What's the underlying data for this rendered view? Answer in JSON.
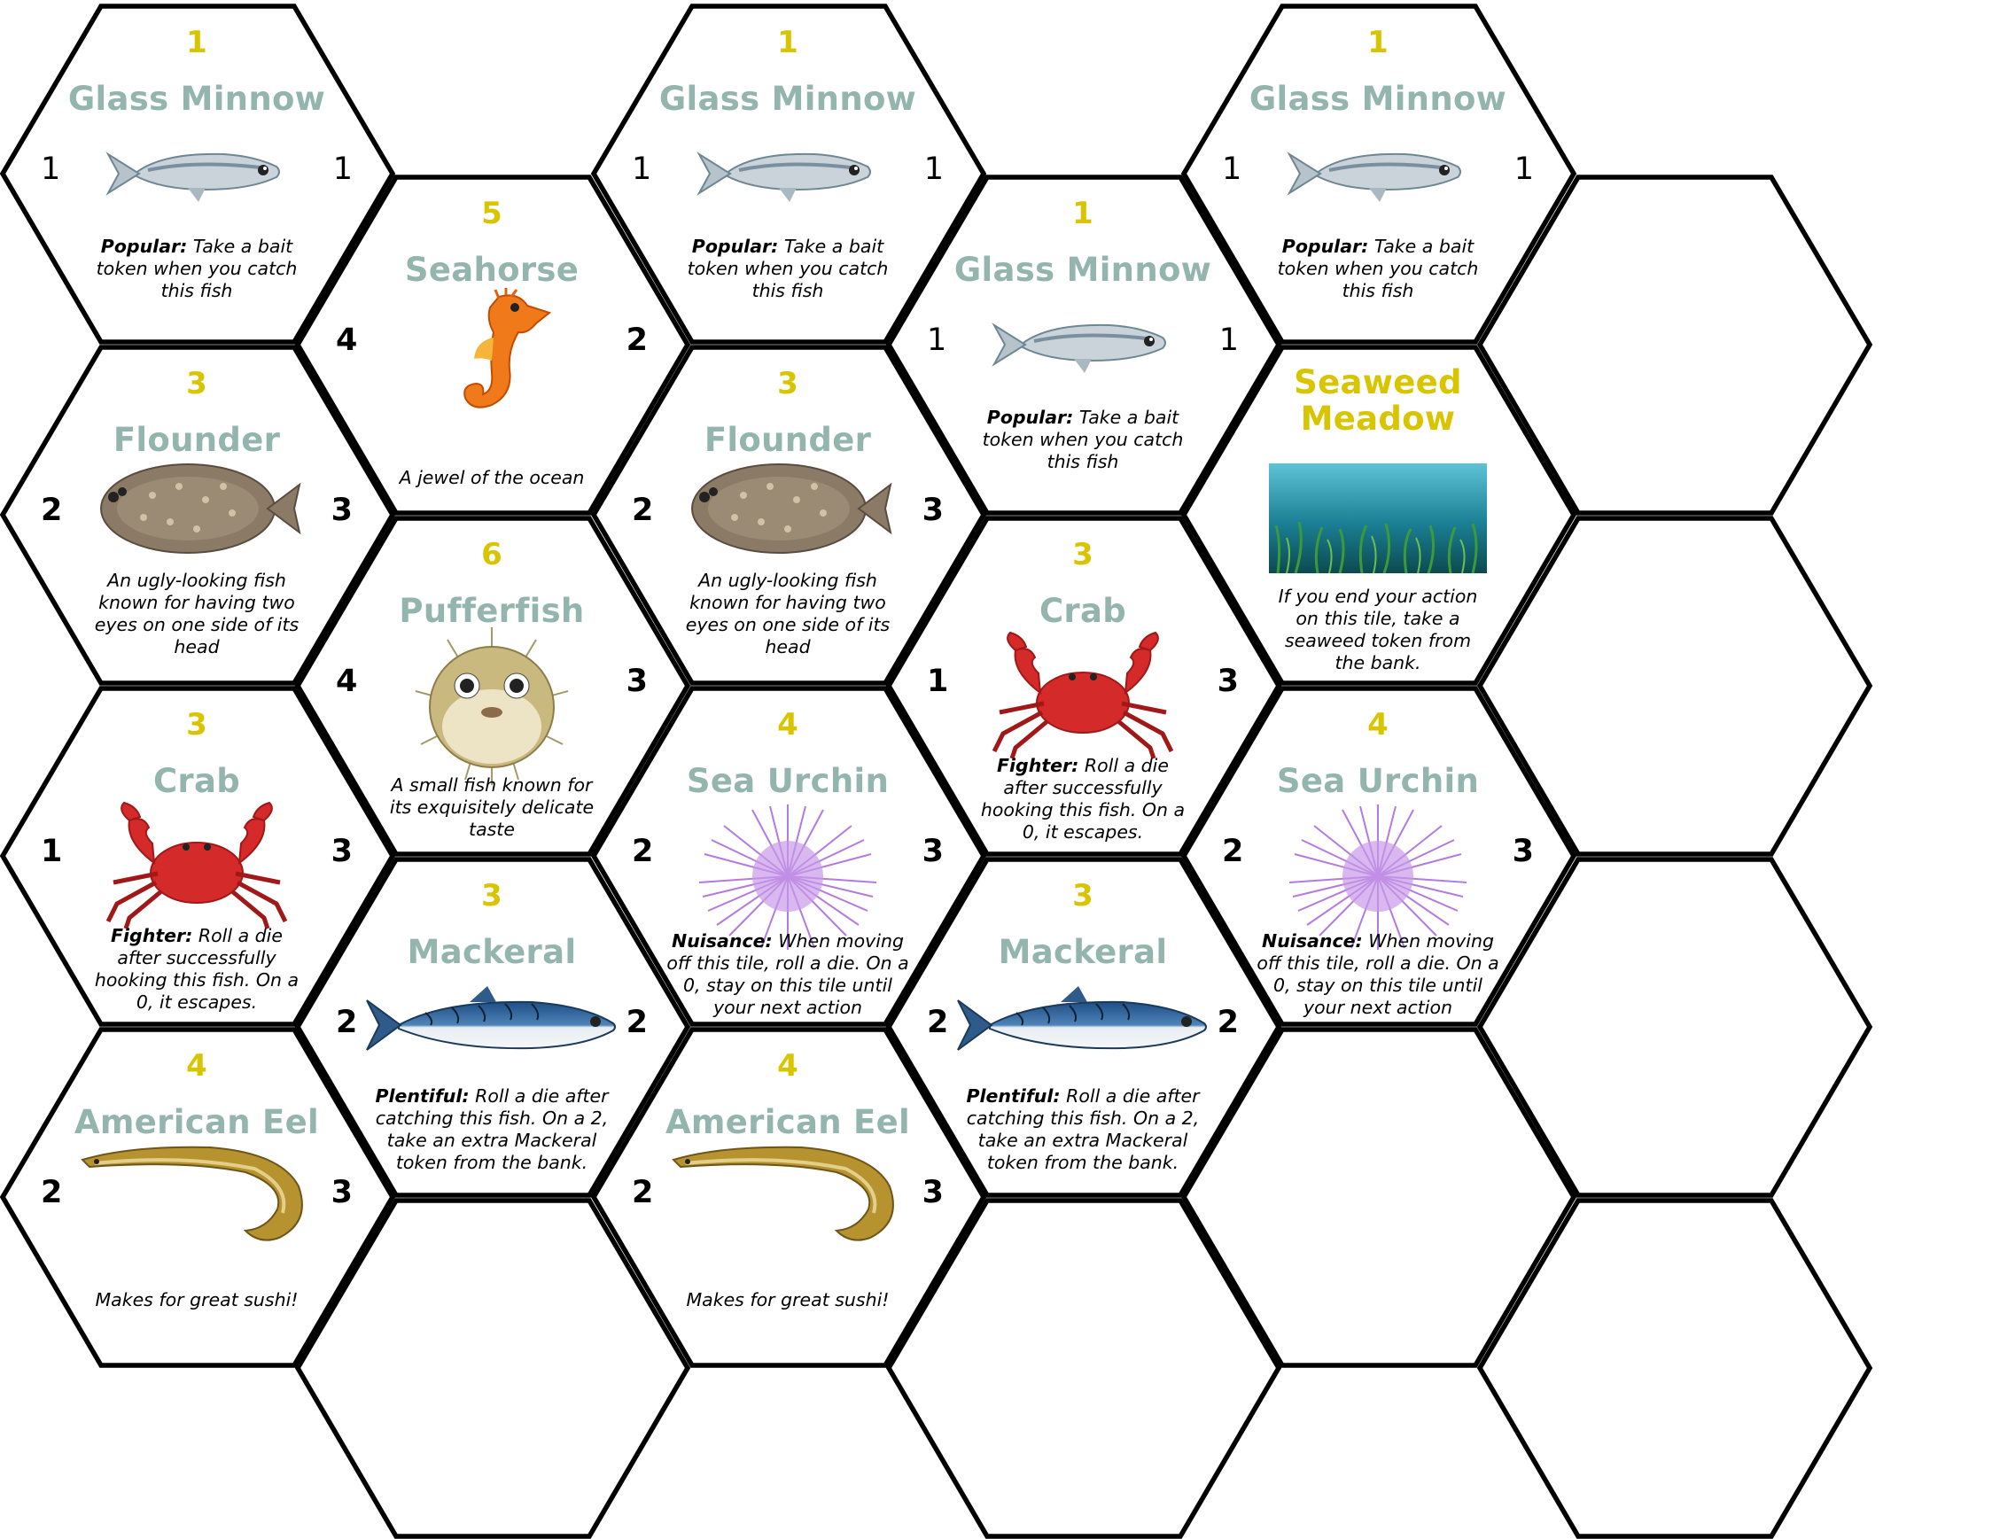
{
  "colors": {
    "accent_yellow": "#d9c400",
    "name_teal": "#93b5ad",
    "outline": "#000000",
    "hex_fill": "#ffffff"
  },
  "tiles": [
    {
      "id": "t0",
      "points": "1",
      "name": "Glass Minnow",
      "left": "1",
      "right": "1",
      "bold_sides": false,
      "icon": "glass-minnow-icon",
      "desc_bold": "Popular:",
      "desc": "Take a bait token when you catch this fish"
    },
    {
      "id": "t1",
      "points": "1",
      "name": "Glass Minnow",
      "left": "1",
      "right": "1",
      "bold_sides": false,
      "icon": "glass-minnow-icon",
      "desc_bold": "Popular:",
      "desc": "Take a bait token when you catch this fish"
    },
    {
      "id": "t2",
      "points": "1",
      "name": "Glass Minnow",
      "left": "1",
      "right": "1",
      "bold_sides": false,
      "icon": "glass-minnow-icon",
      "desc_bold": "Popular:",
      "desc": "Take a bait token when you catch this fish"
    },
    {
      "id": "t3",
      "points": "5",
      "name": "Seahorse",
      "left": "4",
      "right": "2",
      "bold_sides": true,
      "icon": "seahorse-icon",
      "desc_bold": "",
      "desc": "A jewel of the ocean"
    },
    {
      "id": "t4",
      "points": "1",
      "name": "Glass Minnow",
      "left": "1",
      "right": "1",
      "bold_sides": false,
      "icon": "glass-minnow-icon",
      "desc_bold": "Popular:",
      "desc": "Take a bait token when you catch this fish"
    },
    {
      "id": "t5",
      "points": "3",
      "name": "Flounder",
      "left": "2",
      "right": "3",
      "bold_sides": true,
      "icon": "flounder-icon",
      "desc_bold": "",
      "desc": "An ugly-looking fish known for having two eyes on one side of its head"
    },
    {
      "id": "t6",
      "points": "3",
      "name": "Flounder",
      "left": "2",
      "right": "3",
      "bold_sides": true,
      "icon": "flounder-icon",
      "desc_bold": "",
      "desc": "An ugly-looking fish known for having two eyes on one side of its head"
    },
    {
      "id": "t7",
      "points": "",
      "name": "Seaweed Meadow",
      "left": "",
      "right": "",
      "bold_sides": true,
      "icon": "seaweed-meadow-icon",
      "desc_bold": "",
      "desc": "If you end your action on this tile, take a seaweed token from the bank."
    },
    {
      "id": "t8",
      "points": "6",
      "name": "Pufferfish",
      "left": "4",
      "right": "3",
      "bold_sides": true,
      "icon": "pufferfish-icon",
      "desc_bold": "",
      "desc": "A small fish known for its exquisitely delicate taste"
    },
    {
      "id": "t9",
      "points": "3",
      "name": "Crab",
      "left": "1",
      "right": "3",
      "bold_sides": true,
      "icon": "crab-icon",
      "desc_bold": "Fighter:",
      "desc": "Roll a die after successfully hooking this fish. On a 0, it escapes."
    },
    {
      "id": "t10",
      "points": "3",
      "name": "Crab",
      "left": "1",
      "right": "3",
      "bold_sides": true,
      "icon": "crab-icon",
      "desc_bold": "Fighter:",
      "desc": "Roll a die after successfully hooking this fish. On a 0, it escapes."
    },
    {
      "id": "t11",
      "points": "4",
      "name": "Sea Urchin",
      "left": "2",
      "right": "3",
      "bold_sides": true,
      "icon": "sea-urchin-icon",
      "desc_bold": "Nuisance:",
      "desc": "When moving off this tile, roll a die. On a 0, stay on this tile until your next action"
    },
    {
      "id": "t12",
      "points": "4",
      "name": "Sea Urchin",
      "left": "2",
      "right": "3",
      "bold_sides": true,
      "icon": "sea-urchin-icon",
      "desc_bold": "Nuisance:",
      "desc": "When moving off this tile, roll a die. On a 0, stay on this tile until your next action"
    },
    {
      "id": "t13",
      "points": "3",
      "name": "Mackeral",
      "left": "2",
      "right": "2",
      "bold_sides": true,
      "icon": "mackerel-icon",
      "desc_bold": "Plentiful:",
      "desc": "Roll a die after catching this fish. On a 2, take an extra Mackeral token from the bank."
    },
    {
      "id": "t14",
      "points": "3",
      "name": "Mackeral",
      "left": "2",
      "right": "2",
      "bold_sides": true,
      "icon": "mackerel-icon",
      "desc_bold": "Plentiful:",
      "desc": "Roll a die after catching this fish. On a 2, take an extra Mackeral token from the bank."
    },
    {
      "id": "t15",
      "points": "4",
      "name": "American Eel",
      "left": "2",
      "right": "3",
      "bold_sides": true,
      "icon": "american-eel-icon",
      "desc_bold": "",
      "desc": "Makes for great sushi!"
    },
    {
      "id": "t16",
      "points": "4",
      "name": "American Eel",
      "left": "2",
      "right": "3",
      "bold_sides": true,
      "icon": "american-eel-icon",
      "desc_bold": "",
      "desc": "Makes for great sushi!"
    },
    {
      "id": "e0",
      "points": "",
      "name": "",
      "left": "",
      "right": "",
      "bold_sides": false,
      "icon": "",
      "desc_bold": "",
      "desc": ""
    },
    {
      "id": "e1",
      "points": "",
      "name": "",
      "left": "",
      "right": "",
      "bold_sides": false,
      "icon": "",
      "desc_bold": "",
      "desc": ""
    },
    {
      "id": "e2",
      "points": "",
      "name": "",
      "left": "",
      "right": "",
      "bold_sides": false,
      "icon": "",
      "desc_bold": "",
      "desc": ""
    },
    {
      "id": "e3",
      "points": "",
      "name": "",
      "left": "",
      "right": "",
      "bold_sides": false,
      "icon": "",
      "desc_bold": "",
      "desc": ""
    },
    {
      "id": "e4",
      "points": "",
      "name": "",
      "left": "",
      "right": "",
      "bold_sides": false,
      "icon": "",
      "desc_bold": "",
      "desc": ""
    },
    {
      "id": "e5",
      "points": "",
      "name": "",
      "left": "",
      "right": "",
      "bold_sides": false,
      "icon": "",
      "desc_bold": "",
      "desc": ""
    },
    {
      "id": "e6",
      "points": "",
      "name": "",
      "left": "",
      "right": "",
      "bold_sides": false,
      "icon": "",
      "desc_bold": "",
      "desc": ""
    },
    {
      "id": "e7",
      "points": "",
      "name": "",
      "left": "",
      "right": "",
      "bold_sides": false,
      "icon": "",
      "desc_bold": "",
      "desc": ""
    },
    {
      "id": "e8",
      "points": "",
      "name": "",
      "left": "",
      "right": "",
      "bold_sides": false,
      "icon": "",
      "desc_bold": "",
      "desc": ""
    },
    {
      "id": "e9",
      "points": "",
      "name": "",
      "left": "",
      "right": "",
      "bold_sides": false,
      "icon": "",
      "desc_bold": "",
      "desc": ""
    }
  ]
}
